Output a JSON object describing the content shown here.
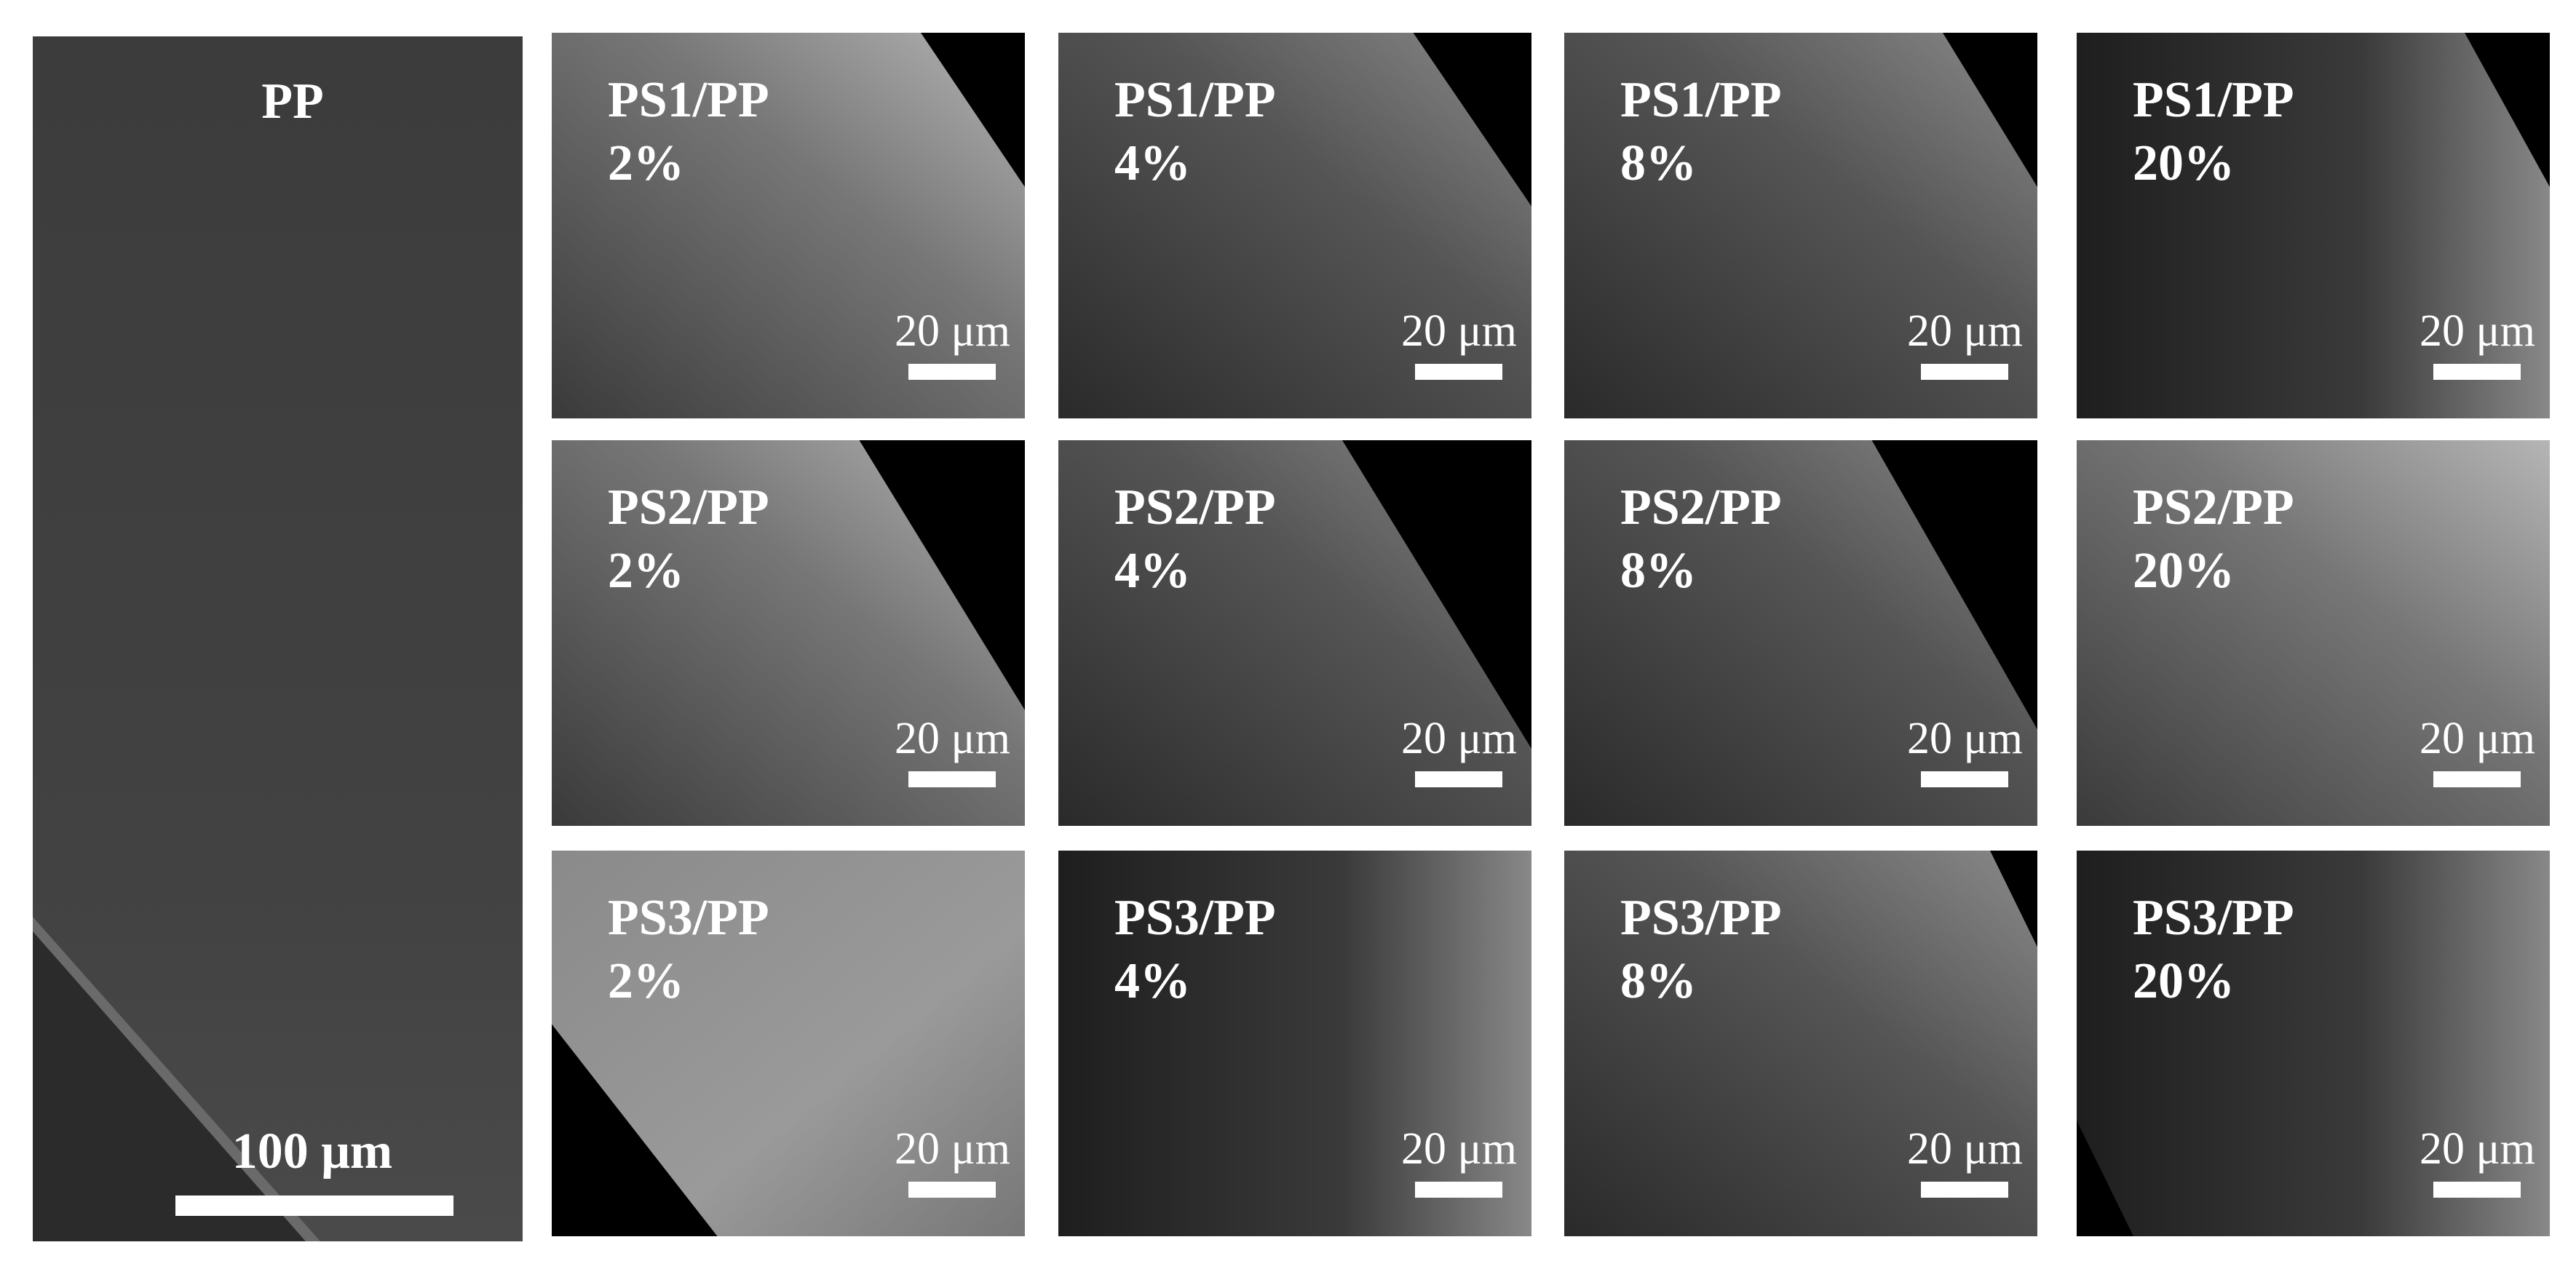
{
  "overview": {
    "label": "PP",
    "scale_bar": "100 μm"
  },
  "grid": [
    {
      "sample": "PS1/PP",
      "loading": "2%",
      "scale_bar": "20 μm"
    },
    {
      "sample": "PS1/PP",
      "loading": "4%",
      "scale_bar": "20 μm"
    },
    {
      "sample": "PS1/PP",
      "loading": "8%",
      "scale_bar": "20 μm"
    },
    {
      "sample": "PS1/PP",
      "loading": "20%",
      "scale_bar": "20 μm"
    },
    {
      "sample": "PS2/PP",
      "loading": "2%",
      "scale_bar": "20 μm"
    },
    {
      "sample": "PS2/PP",
      "loading": "4%",
      "scale_bar": "20 μm"
    },
    {
      "sample": "PS2/PP",
      "loading": "8%",
      "scale_bar": "20 μm"
    },
    {
      "sample": "PS2/PP",
      "loading": "20%",
      "scale_bar": "20 μm"
    },
    {
      "sample": "PS3/PP",
      "loading": "2%",
      "scale_bar": "20 μm"
    },
    {
      "sample": "PS3/PP",
      "loading": "4%",
      "scale_bar": "20 μm"
    },
    {
      "sample": "PS3/PP",
      "loading": "8%",
      "scale_bar": "20 μm"
    },
    {
      "sample": "PS3/PP",
      "loading": "20%",
      "scale_bar": "20 μm"
    }
  ]
}
